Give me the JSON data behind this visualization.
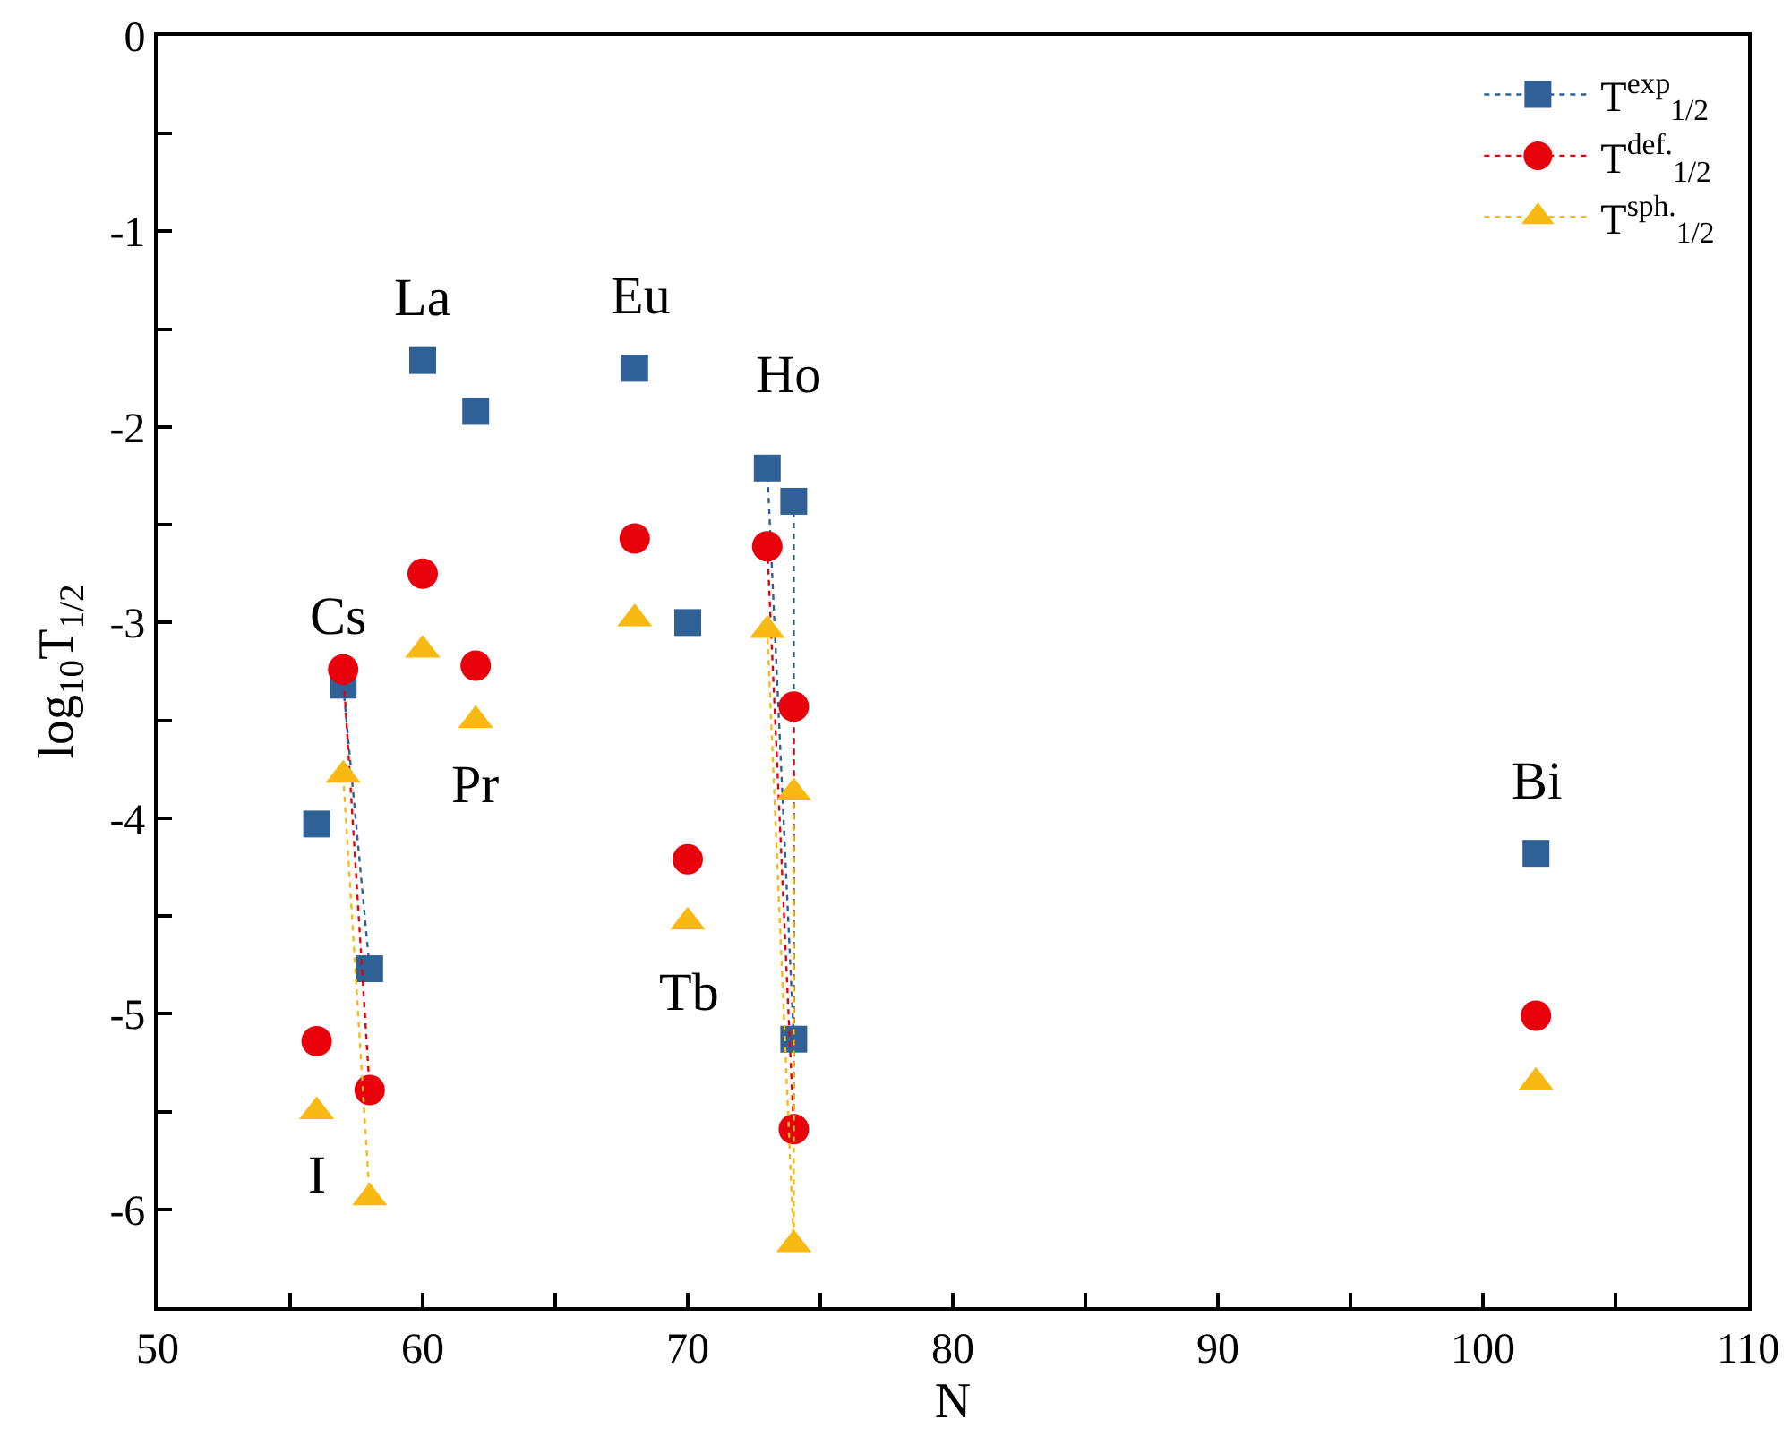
{
  "chart_data": {
    "type": "line",
    "xlabel": "N",
    "ylabel": "log$_{10}$T$_{1/2}$",
    "xlim": [
      50,
      110
    ],
    "ylim": [
      -6.5,
      0
    ],
    "xticks": [
      50,
      {
        "value": 55,
        "label": null
      },
      60,
      {
        "value": 65,
        "label": null
      },
      70,
      {
        "value": 75,
        "label": null
      },
      80,
      {
        "value": 85,
        "label": null
      },
      90,
      {
        "value": 95,
        "label": null
      },
      100,
      {
        "value": 105,
        "label": null
      },
      110
    ],
    "yticks": [
      0,
      {
        "value": -0.5,
        "label": null
      },
      -1,
      {
        "value": -1.5,
        "label": null
      },
      -2,
      {
        "value": -2.5,
        "label": null
      },
      -3,
      {
        "value": -3.5,
        "label": null
      },
      -4,
      {
        "value": -4.5,
        "label": null
      },
      -5,
      {
        "value": -5.5,
        "label": null
      },
      -6,
      {
        "value": -6.5,
        "label": null
      }
    ],
    "grid": false,
    "legend": "top right",
    "line_style": "dotted",
    "series": [
      {
        "name": "T$^{exp}$$_{1/2}$",
        "color": "#2f6096",
        "marker": "square",
        "x": [
          56,
          null,
          57,
          58,
          null,
          60,
          null,
          62,
          null,
          68,
          null,
          70,
          null,
          74,
          74,
          73,
          null,
          102
        ],
        "values": [
          -4.03,
          null,
          -3.32,
          -4.77,
          null,
          -1.66,
          null,
          -1.92,
          null,
          -1.7,
          null,
          -3.0,
          null,
          -2.38,
          -5.13,
          -2.21,
          null,
          -4.18
        ]
      },
      {
        "name": "T$^{def.}$$_{1/2}$",
        "color": "#e8000b",
        "marker": "circle",
        "x": [
          56,
          null,
          57,
          58,
          null,
          60,
          null,
          62,
          null,
          68,
          null,
          70,
          null,
          74,
          74,
          73,
          null,
          102
        ],
        "values": [
          -5.14,
          null,
          -3.24,
          -5.39,
          null,
          -2.75,
          null,
          -3.22,
          null,
          -2.57,
          null,
          -4.21,
          null,
          -3.43,
          -5.59,
          -2.61,
          null,
          -5.01
        ]
      },
      {
        "name": "T$^{sph.}$$_{1/2}$",
        "color": "#f8b912",
        "marker": "triangle",
        "x": [
          56,
          null,
          57,
          58,
          null,
          60,
          null,
          62,
          null,
          68,
          null,
          70,
          null,
          74,
          74,
          73,
          null,
          102
        ],
        "values": [
          -5.5,
          null,
          -3.78,
          -5.94,
          null,
          -3.14,
          null,
          -3.5,
          null,
          -2.98,
          null,
          -4.53,
          null,
          -3.87,
          -6.18,
          -3.04,
          null,
          -5.35
        ]
      }
    ],
    "annotations": [
      {
        "text": "La",
        "x": 60,
        "y": -1.66
      },
      {
        "text": "Eu",
        "x": 68,
        "y": -1.7
      },
      {
        "text": "Ho",
        "x": 74,
        "y": -2.38
      },
      {
        "text": "Cs",
        "x": 57,
        "y": -3.24
      },
      {
        "text": "Pr",
        "x": 62,
        "y": -3.5
      },
      {
        "text": "Tb",
        "x": 70,
        "y": -4.53
      },
      {
        "text": "I",
        "x": 56,
        "y": -5.5
      },
      {
        "text": "Bi",
        "x": 102,
        "y": -4.18
      }
    ]
  }
}
